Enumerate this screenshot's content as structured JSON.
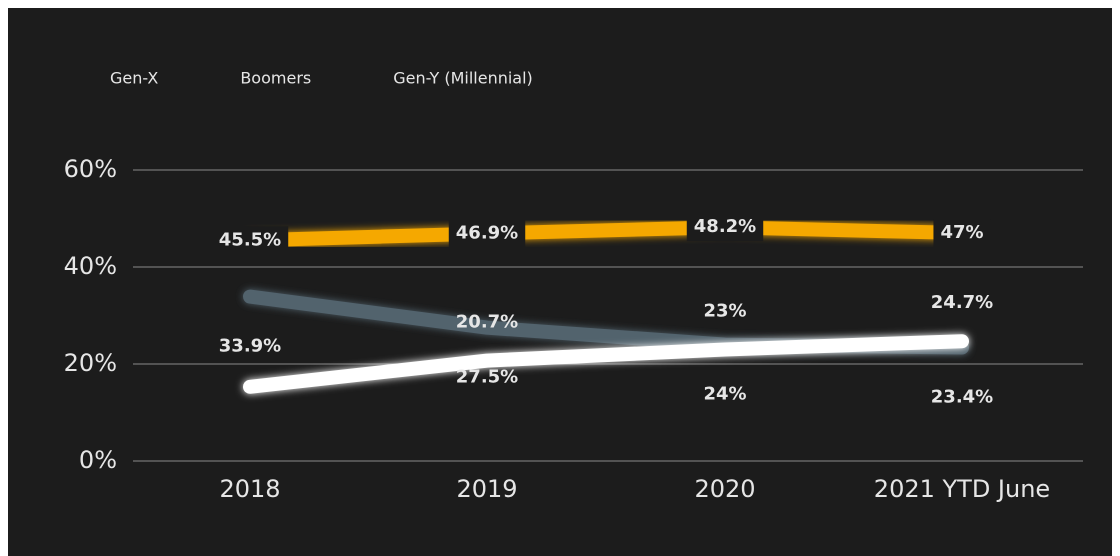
{
  "chart_data": {
    "type": "line",
    "categories": [
      "2018",
      "2019",
      "2020",
      "2021 YTD June"
    ],
    "series": [
      {
        "name": "Gen-X",
        "color": "#f5a800",
        "values": [
          45.5,
          46.9,
          48.2,
          47
        ],
        "value_labels": [
          "45.5%",
          "46.9%",
          "48.2%",
          "47%"
        ]
      },
      {
        "name": "Boomers",
        "color": "#5b6f7c",
        "values": [
          33.9,
          27.5,
          24,
          23.4
        ],
        "value_labels": [
          "33.9%",
          "27.5%",
          "24%",
          "23.4%"
        ]
      },
      {
        "name": "Gen-Y (Millennial)",
        "color": "#ffffff",
        "values": [
          15.3,
          20.7,
          23,
          24.7
        ],
        "value_labels": [
          null,
          "20.7%",
          "23%",
          "24.7%"
        ]
      }
    ],
    "ylim": [
      0,
      60
    ],
    "yticks": [
      {
        "value": 0,
        "label": "0%"
      },
      {
        "value": 20,
        "label": "20%"
      },
      {
        "value": 40,
        "label": "40%"
      },
      {
        "value": 60,
        "label": "60%"
      }
    ],
    "grid": true,
    "legend": "top-left"
  }
}
